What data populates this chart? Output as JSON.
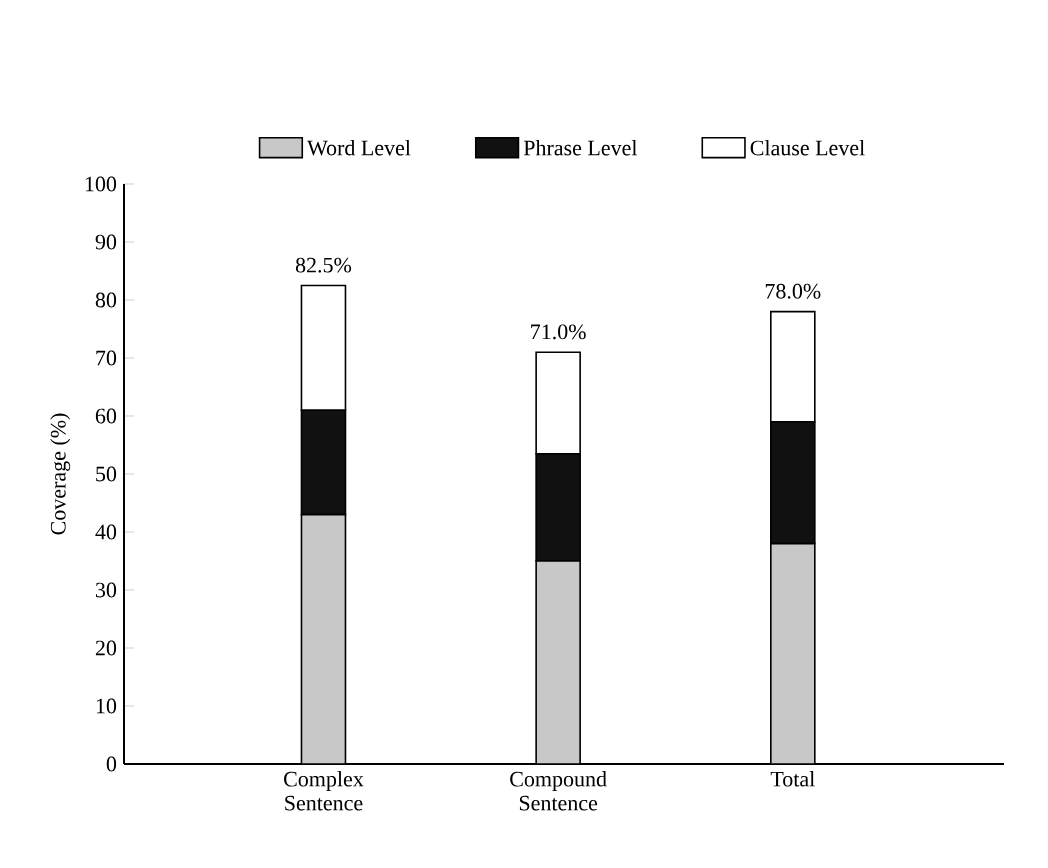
{
  "chart_data": {
    "type": "bar",
    "stacked": true,
    "ylabel": "Coverage (%)",
    "categories": [
      "Complex Sentence",
      "Compound Sentence",
      "Total"
    ],
    "series": [
      {
        "name": "Word Level",
        "color": "#c8c8c8",
        "values": [
          43,
          35,
          38
        ]
      },
      {
        "name": "Phrase Level",
        "color": "#111111",
        "values": [
          18,
          18.5,
          21
        ]
      },
      {
        "name": "Clause Level",
        "color": "#ffffff",
        "values": [
          21.5,
          17.5,
          19
        ]
      }
    ],
    "totals": [
      "82.5%",
      "71.0%",
      "78.0%"
    ],
    "ylim": [
      0,
      100
    ],
    "yticks": [
      0,
      10,
      20,
      30,
      40,
      50,
      60,
      70,
      80,
      90,
      100
    ],
    "grid": false,
    "legend": "top"
  }
}
